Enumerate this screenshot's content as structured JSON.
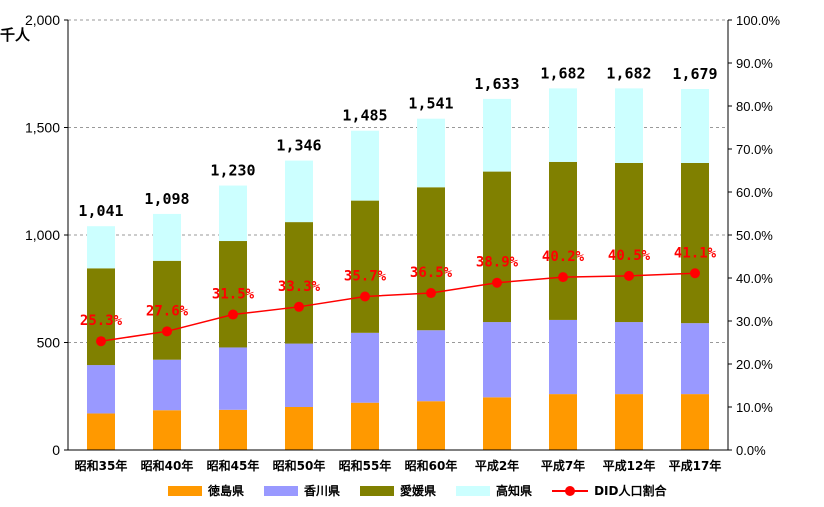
{
  "chart_data": {
    "type": "bar",
    "stacked": true,
    "categories": [
      "昭和35年",
      "昭和40年",
      "昭和45年",
      "昭和50年",
      "昭和55年",
      "昭和60年",
      "平成2年",
      "平成7年",
      "平成12年",
      "平成17年"
    ],
    "series": [
      {
        "name": "徳島県",
        "color": "#ff9900",
        "values": [
          170,
          185,
          187,
          200,
          220,
          227,
          245,
          260,
          260,
          260
        ]
      },
      {
        "name": "香川県",
        "color": "#9999ff",
        "values": [
          225,
          235,
          290,
          295,
          325,
          330,
          350,
          345,
          335,
          330
        ]
      },
      {
        "name": "愛媛県",
        "color": "#808000",
        "values": [
          450,
          460,
          495,
          565,
          615,
          665,
          700,
          735,
          740,
          745
        ]
      },
      {
        "name": "高知県",
        "color": "#ccffff",
        "values": [
          196,
          218,
          258,
          286,
          325,
          319,
          338,
          342,
          347,
          344
        ]
      }
    ],
    "totals": [
      "1,041",
      "1,098",
      "1,230",
      "1,346",
      "1,485",
      "1,541",
      "1,633",
      "1,682",
      "1,682",
      "1,679"
    ],
    "line": {
      "name": "DID人口割合",
      "color": "#ff0000",
      "values": [
        25.3,
        27.6,
        31.5,
        33.3,
        35.7,
        36.5,
        38.9,
        40.2,
        40.5,
        41.1
      ],
      "labels": [
        "25.3%",
        "27.6%",
        "31.5%",
        "33.3%",
        "35.7%",
        "36.5%",
        "38.9%",
        "40.2%",
        "40.5%",
        "41.1%"
      ]
    },
    "ylabel": "千人",
    "ylim": [
      0,
      2000
    ],
    "yticks": [
      "0",
      "500",
      "1,000",
      "1,500",
      "2,000"
    ],
    "y2lim": [
      0,
      100
    ],
    "y2ticks": [
      "0.0%",
      "10.0%",
      "20.0%",
      "30.0%",
      "40.0%",
      "50.0%",
      "60.0%",
      "70.0%",
      "80.0%",
      "90.0%",
      "100.0%"
    ],
    "grid": true,
    "legend_position": "bottom"
  }
}
